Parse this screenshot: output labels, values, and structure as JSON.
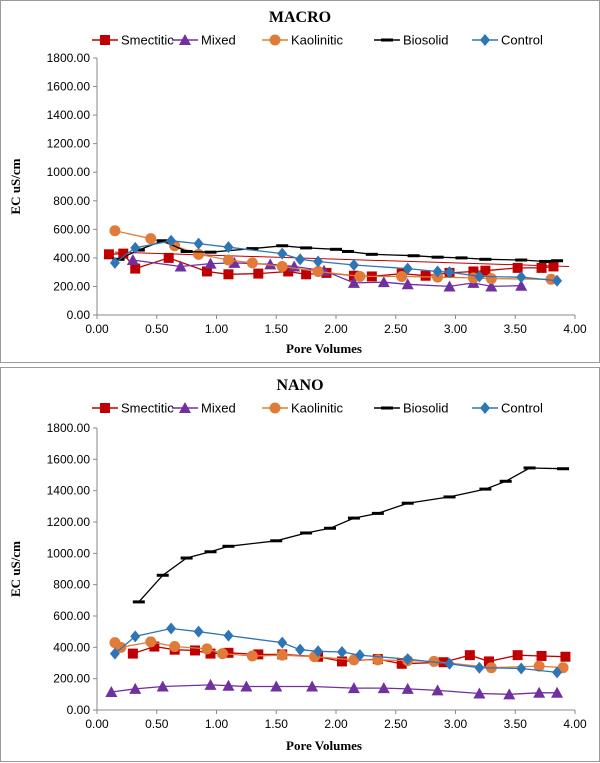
{
  "chart_data": [
    {
      "type": "line",
      "title": "MACRO",
      "xlabel": "Pore Volumes",
      "ylabel": "EC uS/cm",
      "xlim": [
        0,
        4
      ],
      "ylim": [
        0,
        1800
      ],
      "xticks": [
        "0.00",
        "0.50",
        "1.00",
        "1.50",
        "2.00",
        "2.50",
        "3.00",
        "3.50",
        "4.00"
      ],
      "yticks": [
        "0.00",
        "200.00",
        "400.00",
        "600.00",
        "800.00",
        "1000.00",
        "1200.00",
        "1400.00",
        "1600.00",
        "1800.00"
      ],
      "legend_position": "top",
      "grid": false,
      "trendline": {
        "x": [
          0.15,
          3.95
        ],
        "y": [
          440,
          340
        ]
      },
      "series": [
        {
          "name": "Smectitic",
          "color": "#c00000",
          "marker": "square",
          "x": [
            0.1,
            0.22,
            0.32,
            0.6,
            0.92,
            1.1,
            1.35,
            1.6,
            1.75,
            1.92,
            2.15,
            2.3,
            2.55,
            2.75,
            2.95,
            3.15,
            3.25,
            3.52,
            3.72,
            3.82
          ],
          "y": [
            425,
            430,
            325,
            400,
            305,
            285,
            290,
            305,
            285,
            295,
            275,
            270,
            290,
            275,
            295,
            305,
            310,
            330,
            330,
            340
          ]
        },
        {
          "name": "Mixed",
          "color": "#7030a0",
          "marker": "triangle",
          "x": [
            0.3,
            0.7,
            0.95,
            1.15,
            1.45,
            1.65,
            1.9,
            2.15,
            2.4,
            2.6,
            2.95,
            3.15,
            3.3,
            3.55
          ],
          "y": [
            385,
            340,
            360,
            365,
            355,
            340,
            310,
            225,
            230,
            215,
            200,
            225,
            200,
            205
          ]
        },
        {
          "name": "Kaolinitic",
          "color": "#e07b39",
          "marker": "circle",
          "x": [
            0.15,
            0.45,
            0.65,
            0.85,
            1.1,
            1.3,
            1.55,
            1.85,
            2.2,
            2.55,
            2.85,
            3.15,
            3.3,
            3.8
          ],
          "y": [
            590,
            535,
            485,
            425,
            385,
            365,
            340,
            305,
            270,
            270,
            265,
            260,
            255,
            250
          ]
        },
        {
          "name": "Biosolid",
          "color": "#000000",
          "marker": "dash",
          "x": [
            0.18,
            0.35,
            0.55,
            0.75,
            0.95,
            1.3,
            1.55,
            1.75,
            2.0,
            2.1,
            2.3,
            2.65,
            2.85,
            3.05,
            3.25,
            3.55,
            3.75,
            3.85
          ],
          "y": [
            390,
            455,
            520,
            445,
            440,
            465,
            485,
            470,
            460,
            445,
            425,
            415,
            405,
            400,
            390,
            385,
            375,
            380
          ]
        },
        {
          "name": "Control",
          "color": "#2e75b6",
          "marker": "diamond",
          "x": [
            0.15,
            0.32,
            0.62,
            0.85,
            1.1,
            1.55,
            1.7,
            1.85,
            2.15,
            2.6,
            2.85,
            2.95,
            3.2,
            3.55,
            3.85
          ],
          "y": [
            365,
            470,
            520,
            500,
            475,
            430,
            390,
            375,
            350,
            325,
            305,
            300,
            270,
            265,
            240
          ]
        }
      ]
    },
    {
      "type": "line",
      "title": "NANO",
      "xlabel": "Pore Volumes",
      "ylabel": "EC uS/cm",
      "xlim": [
        0,
        4
      ],
      "ylim": [
        0,
        1800
      ],
      "xticks": [
        "0.00",
        "0.50",
        "1.00",
        "1.50",
        "2.00",
        "2.50",
        "3.00",
        "3.50",
        "4.00"
      ],
      "yticks": [
        "0.00",
        "200.00",
        "400.00",
        "600.00",
        "800.00",
        "1000.00",
        "1200.00",
        "1400.00",
        "1600.00",
        "1800.00"
      ],
      "legend_position": "top",
      "grid": false,
      "series": [
        {
          "name": "Smectitic",
          "color": "#c00000",
          "marker": "square",
          "x": [
            0.3,
            0.48,
            0.65,
            0.82,
            0.95,
            1.1,
            1.35,
            1.55,
            1.85,
            2.05,
            2.35,
            2.55,
            2.9,
            3.12,
            3.28,
            3.52,
            3.72,
            3.92
          ],
          "y": [
            360,
            405,
            385,
            380,
            360,
            365,
            355,
            355,
            340,
            310,
            325,
            295,
            305,
            350,
            310,
            350,
            345,
            340
          ]
        },
        {
          "name": "Mixed",
          "color": "#7030a0",
          "marker": "triangle",
          "x": [
            0.12,
            0.32,
            0.55,
            0.95,
            1.1,
            1.25,
            1.5,
            1.8,
            2.15,
            2.4,
            2.6,
            2.85,
            3.2,
            3.45,
            3.7,
            3.85
          ],
          "y": [
            115,
            135,
            150,
            160,
            155,
            150,
            150,
            150,
            140,
            140,
            135,
            125,
            105,
            100,
            110,
            110
          ]
        },
        {
          "name": "Kaolinitic",
          "color": "#e07b39",
          "marker": "circle",
          "x": [
            0.15,
            0.2,
            0.45,
            0.65,
            0.92,
            1.05,
            1.3,
            1.55,
            1.82,
            2.15,
            2.35,
            2.6,
            2.82,
            3.3,
            3.7,
            3.9
          ],
          "y": [
            430,
            400,
            435,
            405,
            390,
            360,
            345,
            350,
            340,
            320,
            320,
            315,
            310,
            270,
            280,
            270
          ]
        },
        {
          "name": "Biosolid",
          "color": "#000000",
          "marker": "dash",
          "x": [
            0.35,
            0.55,
            0.75,
            0.95,
            1.1,
            1.5,
            1.75,
            1.95,
            2.15,
            2.35,
            2.6,
            2.95,
            3.25,
            3.42,
            3.62,
            3.9
          ],
          "y": [
            690,
            860,
            970,
            1010,
            1045,
            1080,
            1130,
            1160,
            1225,
            1255,
            1320,
            1360,
            1410,
            1460,
            1545,
            1540
          ]
        },
        {
          "name": "Control",
          "color": "#2e75b6",
          "marker": "diamond",
          "x": [
            0.15,
            0.32,
            0.62,
            0.85,
            1.1,
            1.55,
            1.7,
            1.85,
            2.05,
            2.2,
            2.6,
            2.95,
            3.2,
            3.55,
            3.85
          ],
          "y": [
            360,
            470,
            520,
            500,
            475,
            430,
            385,
            375,
            370,
            350,
            325,
            295,
            270,
            265,
            240
          ]
        }
      ]
    }
  ]
}
